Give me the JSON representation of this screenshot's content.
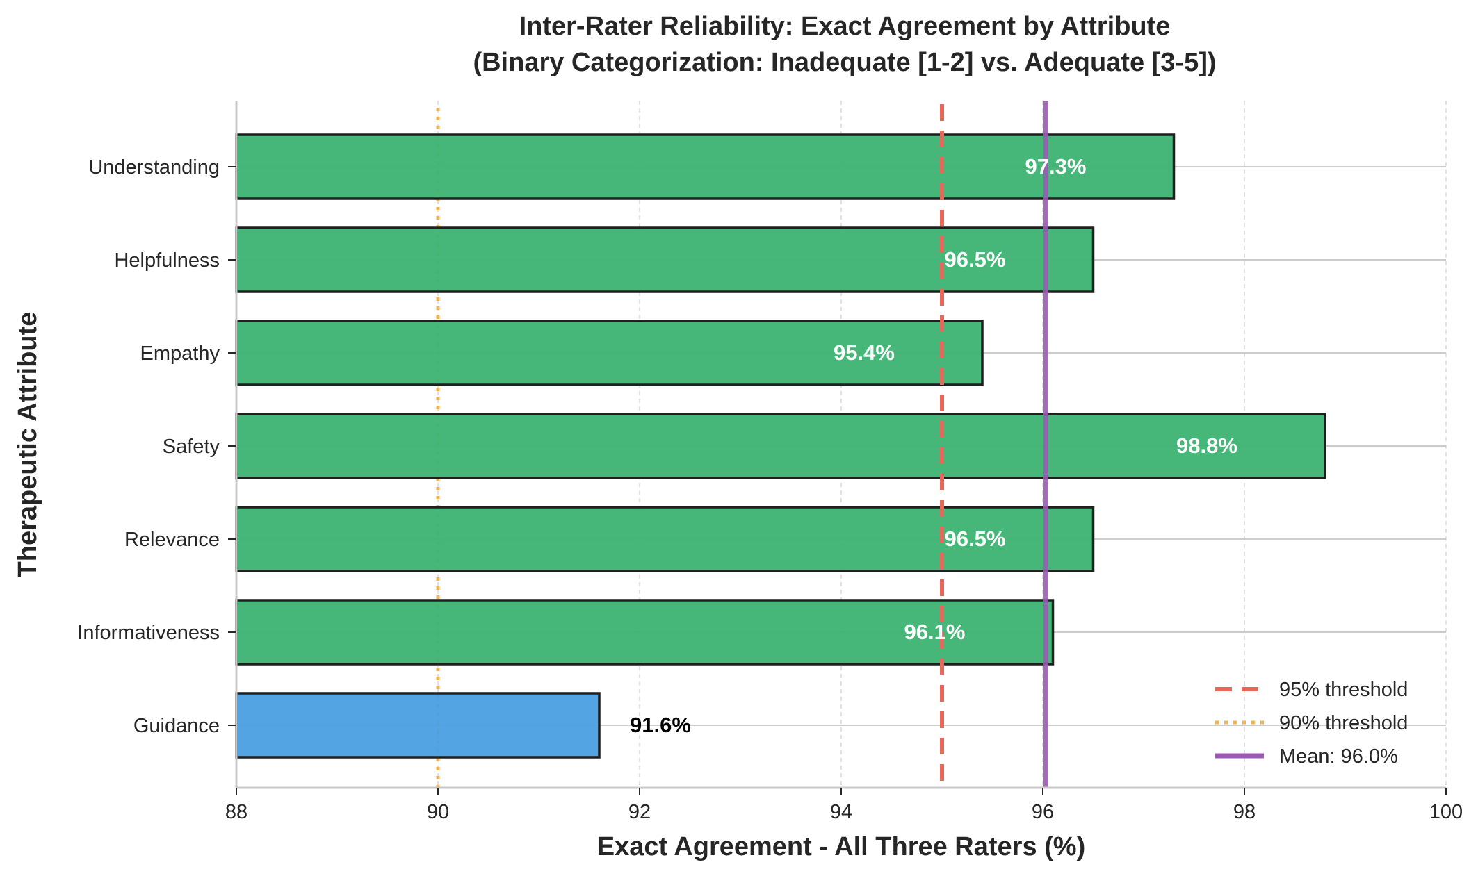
{
  "chart_data": {
    "type": "bar",
    "orientation": "horizontal",
    "title": "Inter-Rater Reliability: Exact Agreement by Attribute",
    "subtitle": "(Binary Categorization: Inadequate [1-2] vs. Adequate [3-5])",
    "xlabel": "Exact Agreement - All Three Raters (%)",
    "ylabel": "Therapeutic Attribute",
    "xlim": [
      88,
      100
    ],
    "xticks": [
      "88",
      "90",
      "92",
      "94",
      "96",
      "98",
      "100"
    ],
    "categories": [
      "Understanding",
      "Helpfulness",
      "Empathy",
      "Safety",
      "Relevance",
      "Informativeness",
      "Guidance"
    ],
    "values": [
      97.3,
      96.5,
      95.4,
      98.8,
      96.5,
      96.1,
      91.6
    ],
    "value_labels": [
      "97.3%",
      "96.5%",
      "95.4%",
      "98.8%",
      "96.5%",
      "96.1%",
      "91.6%"
    ],
    "bar_colors": [
      "#3cb371",
      "#3cb371",
      "#3cb371",
      "#3cb371",
      "#3cb371",
      "#3cb371",
      "#4a9fe0"
    ],
    "reference_lines": [
      {
        "label": "95% threshold",
        "value": 95,
        "style": "dashed",
        "color": "#e5685a"
      },
      {
        "label": "90% threshold",
        "value": 90,
        "style": "dotted",
        "color": "#f0b14f"
      },
      {
        "label": "Mean: 96.0%",
        "value": 96.03,
        "style": "solid",
        "color": "#9b59b6"
      }
    ],
    "legend_position": "lower-right",
    "grid": "x-dashed"
  }
}
